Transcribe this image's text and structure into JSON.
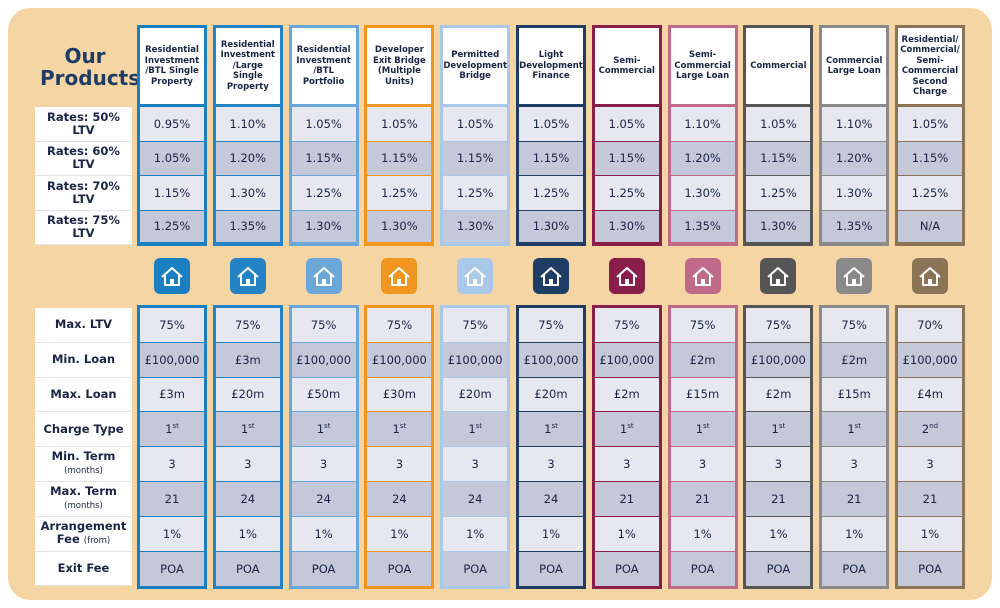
{
  "header": {
    "title_line1": "Our",
    "title_line2": "Products"
  },
  "products": [
    {
      "name": "Residential Investment /BTL Single Property",
      "color": "#1a7fc1"
    },
    {
      "name": "Residential Investment /Large Single Property",
      "color": "#2383c4"
    },
    {
      "name": "Residential Investment /BTL Portfolio",
      "color": "#6aa7d8"
    },
    {
      "name": "Developer Exit Bridge (Multiple Units)",
      "color": "#f0961e"
    },
    {
      "name": "Permitted Development Bridge",
      "color": "#aac8e8"
    },
    {
      "name": "Light Development Finance",
      "color": "#1f3c64"
    },
    {
      "name": "Semi-Commercial",
      "color": "#8a1e4a"
    },
    {
      "name": "Semi-Commercial Large Loan",
      "color": "#c06a8a"
    },
    {
      "name": "Commercial",
      "color": "#555555"
    },
    {
      "name": "Commercial Large Loan",
      "color": "#8a8a8a"
    },
    {
      "name": "Residential/ Commercial/ Semi-Commercial Second Charge",
      "color": "#8b7355"
    }
  ],
  "rates": [
    {
      "label": "Rates: 50% LTV",
      "values": [
        "0.95%",
        "1.10%",
        "1.05%",
        "1.05%",
        "1.05%",
        "1.05%",
        "1.05%",
        "1.10%",
        "1.05%",
        "1.10%",
        "1.05%"
      ]
    },
    {
      "label": "Rates: 60% LTV",
      "values": [
        "1.05%",
        "1.20%",
        "1.15%",
        "1.15%",
        "1.15%",
        "1.15%",
        "1.15%",
        "1.20%",
        "1.15%",
        "1.20%",
        "1.15%"
      ]
    },
    {
      "label": "Rates: 70% LTV",
      "values": [
        "1.15%",
        "1.30%",
        "1.25%",
        "1.25%",
        "1.25%",
        "1.25%",
        "1.25%",
        "1.30%",
        "1.25%",
        "1.30%",
        "1.25%"
      ]
    },
    {
      "label": "Rates: 75% LTV",
      "values": [
        "1.25%",
        "1.35%",
        "1.30%",
        "1.30%",
        "1.30%",
        "1.30%",
        "1.30%",
        "1.35%",
        "1.30%",
        "1.35%",
        "N/A"
      ]
    }
  ],
  "features": [
    {
      "label": "Max. LTV",
      "values": [
        "75%",
        "75%",
        "75%",
        "75%",
        "75%",
        "75%",
        "75%",
        "75%",
        "75%",
        "75%",
        "70%"
      ]
    },
    {
      "label": "Min. Loan",
      "values": [
        "£100,000",
        "£3m",
        "£100,000",
        "£100,000",
        "£100,000",
        "£100,000",
        "£100,000",
        "£2m",
        "£100,000",
        "£2m",
        "£100,000"
      ]
    },
    {
      "label": "Max. Loan",
      "values": [
        "£3m",
        "£20m",
        "£50m",
        "£30m",
        "£20m",
        "£20m",
        "£2m",
        "£15m",
        "£2m",
        "£15m",
        "£4m"
      ]
    },
    {
      "label": "Charge Type",
      "values": [
        {
          "n": "1",
          "sup": "st"
        },
        {
          "n": "1",
          "sup": "st"
        },
        {
          "n": "1",
          "sup": "st"
        },
        {
          "n": "1",
          "sup": "st"
        },
        {
          "n": "1",
          "sup": "st"
        },
        {
          "n": "1",
          "sup": "st"
        },
        {
          "n": "1",
          "sup": "st"
        },
        {
          "n": "1",
          "sup": "st"
        },
        {
          "n": "1",
          "sup": "st"
        },
        {
          "n": "1",
          "sup": "st"
        },
        {
          "n": "2",
          "sup": "nd"
        }
      ]
    },
    {
      "label": "Min. Term",
      "note": "(months)",
      "values": [
        "3",
        "3",
        "3",
        "3",
        "3",
        "3",
        "3",
        "3",
        "3",
        "3",
        "3"
      ]
    },
    {
      "label": "Max. Term",
      "note": "(months)",
      "values": [
        "21",
        "24",
        "24",
        "24",
        "24",
        "24",
        "21",
        "21",
        "21",
        "21",
        "21"
      ]
    },
    {
      "label": "Arrangement Fee",
      "note": "(from)",
      "values": [
        "1%",
        "1%",
        "1%",
        "1%",
        "1%",
        "1%",
        "1%",
        "1%",
        "1%",
        "1%",
        "1%"
      ]
    },
    {
      "label": "Exit Fee",
      "values": [
        "POA",
        "POA",
        "POA",
        "POA",
        "POA",
        "POA",
        "POA",
        "POA",
        "POA",
        "POA",
        "POA"
      ]
    }
  ]
}
